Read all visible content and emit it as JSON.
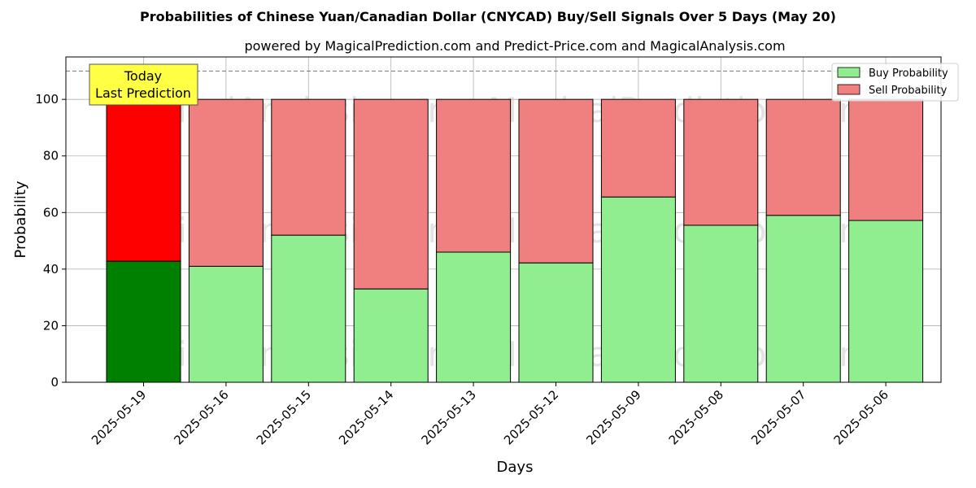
{
  "chart_data": {
    "type": "bar",
    "title": "Probabilities of Chinese Yuan/Canadian Dollar (CNYCAD) Buy/Sell Signals Over 5 Days (May 20)",
    "subtitle": "powered by MagicalPrediction.com and Predict-Price.com and MagicalAnalysis.com",
    "xlabel": "Days",
    "ylabel": "Probability",
    "ylim": [
      0,
      115
    ],
    "yticks": [
      0,
      20,
      40,
      60,
      80,
      100
    ],
    "grid": true,
    "legend_position": "top-right",
    "categories": [
      "2025-05-19",
      "2025-05-16",
      "2025-05-15",
      "2025-05-14",
      "2025-05-13",
      "2025-05-12",
      "2025-05-09",
      "2025-05-08",
      "2025-05-07",
      "2025-05-06"
    ],
    "series": [
      {
        "name": "Buy Probability",
        "values": [
          42.8,
          41.0,
          52.0,
          33.0,
          46.0,
          42.2,
          65.5,
          55.5,
          59.0,
          57.2
        ]
      },
      {
        "name": "Sell Probability",
        "values": [
          57.2,
          59.0,
          48.0,
          67.0,
          54.0,
          57.8,
          34.5,
          44.5,
          41.0,
          42.8
        ]
      }
    ],
    "reference_line": 110,
    "annotation": {
      "line1": "Today",
      "line2": "Last Prediction"
    },
    "watermarks": [
      "MagicalAnalysis.com",
      "MagicalPrediction.com"
    ],
    "colors": {
      "buy": "#90ee90",
      "sell": "#f08080",
      "buy_today": "#008000",
      "sell_today": "#ff0000",
      "annotation_bg": "#ffff44"
    }
  }
}
